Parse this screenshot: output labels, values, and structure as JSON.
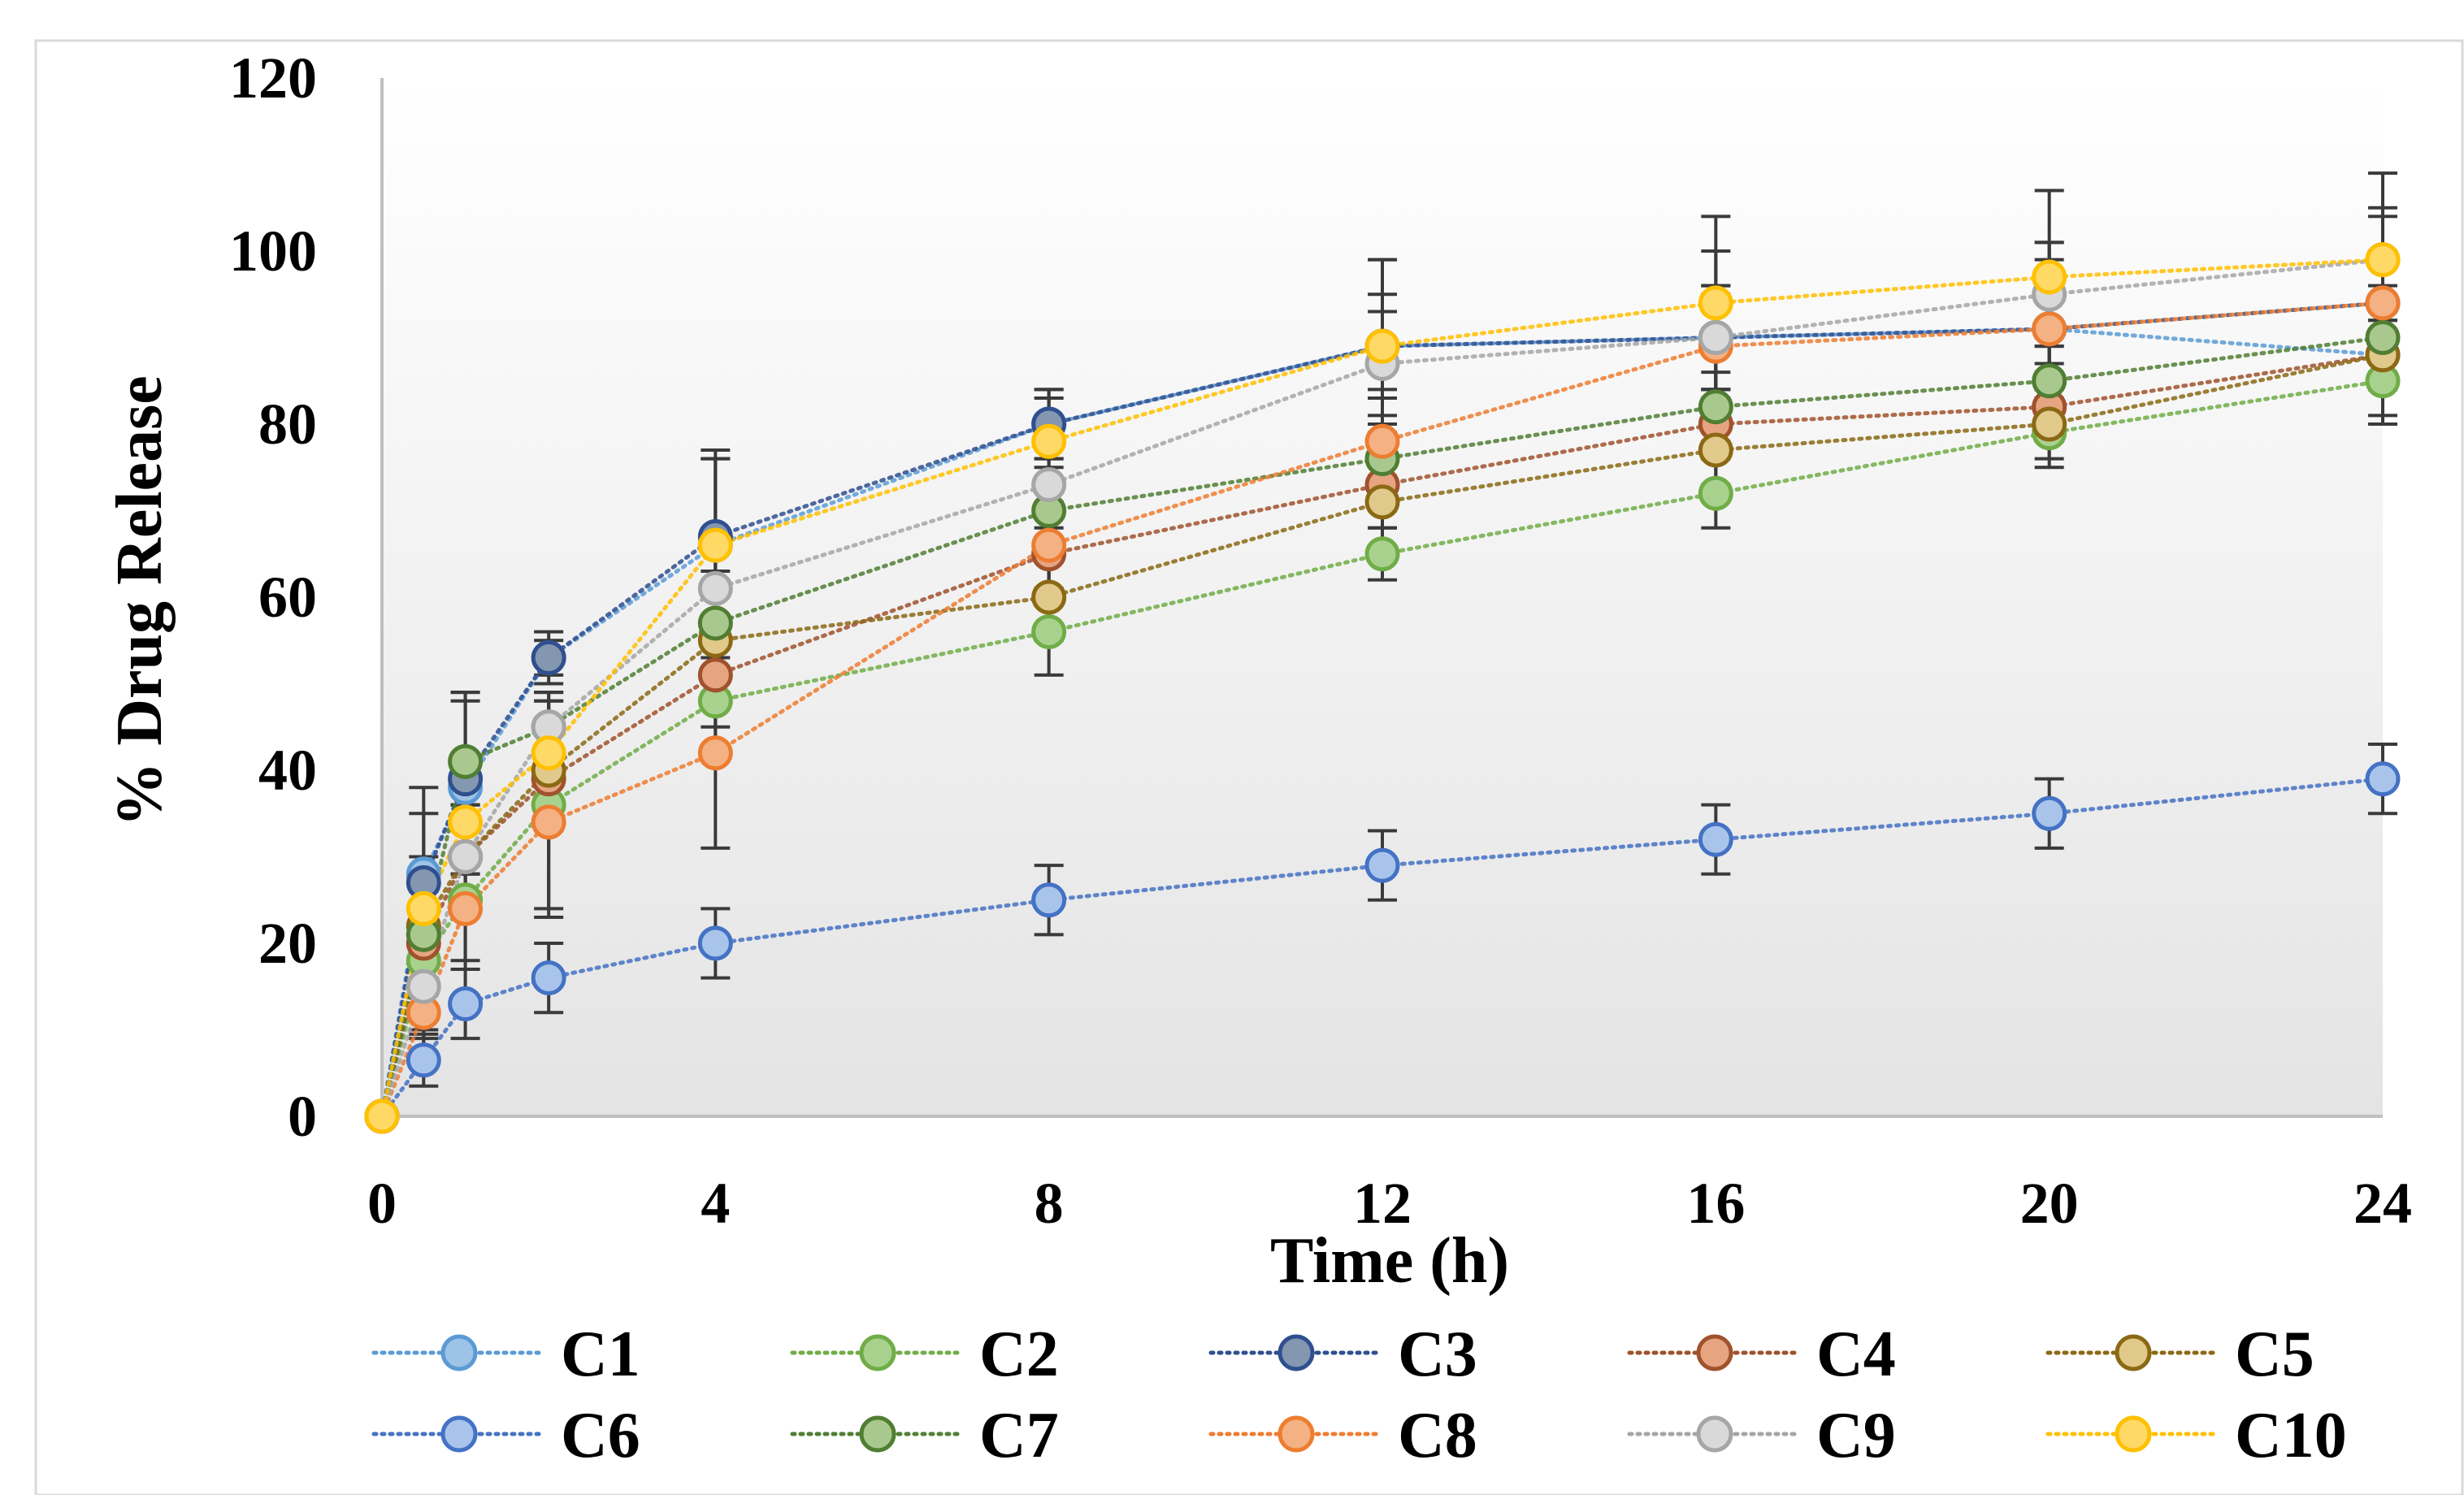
{
  "chart_data": {
    "type": "line",
    "title": "",
    "xlabel": "Time (h)",
    "ylabel": "% Drug Release",
    "x": [
      0,
      0.5,
      1,
      2,
      4,
      8,
      12,
      16,
      20,
      24
    ],
    "x_ticks": [
      0,
      4,
      8,
      12,
      16,
      20,
      24
    ],
    "y_ticks": [
      0,
      20,
      40,
      60,
      80,
      100,
      120
    ],
    "xlim": [
      0,
      24
    ],
    "ylim": [
      0,
      120
    ],
    "grid": false,
    "legend_position": "bottom",
    "series": [
      {
        "name": "C1",
        "color": "#9DC3E6",
        "edge": "#5B9BD5",
        "values": [
          0,
          28,
          38,
          53,
          66,
          80,
          89,
          90,
          91,
          88
        ],
        "errors": [
          0,
          10,
          10,
          3,
          10,
          4,
          6,
          6,
          8,
          8
        ]
      },
      {
        "name": "C2",
        "color": "#A9D18E",
        "edge": "#70AD47",
        "values": [
          0,
          18,
          25,
          36,
          48,
          56,
          65,
          72,
          79,
          85
        ],
        "errors": [
          0,
          8,
          8,
          12,
          6,
          5,
          3,
          4,
          4,
          4
        ]
      },
      {
        "name": "C3",
        "color": "#8497B0",
        "edge": "#2F4F8F",
        "values": [
          0,
          27,
          39,
          53,
          67,
          80,
          89,
          90,
          91,
          94
        ],
        "errors": [
          0,
          8,
          10,
          2,
          10,
          4,
          10,
          10,
          10,
          10
        ]
      },
      {
        "name": "C4",
        "color": "#E6A481",
        "edge": "#A0522D",
        "values": [
          0,
          20,
          30,
          39,
          51,
          65,
          73,
          80,
          82,
          88
        ],
        "errors": [
          0,
          6,
          6,
          6,
          6,
          5,
          3,
          4,
          4,
          4
        ]
      },
      {
        "name": "C5",
        "color": "#E0C98A",
        "edge": "#8B6914",
        "values": [
          0,
          22,
          30,
          40,
          55,
          60,
          71,
          77,
          80,
          88
        ],
        "errors": [
          0,
          6,
          6,
          6,
          6,
          5,
          3,
          4,
          4,
          4
        ]
      },
      {
        "name": "C6",
        "color": "#A9C4EB",
        "edge": "#4472C4",
        "values": [
          0,
          6.5,
          13,
          16,
          20,
          25,
          29,
          32,
          35,
          39
        ],
        "errors": [
          0,
          3,
          4,
          4,
          4,
          4,
          4,
          4,
          4,
          4
        ]
      },
      {
        "name": "C7",
        "color": "#A9C88E",
        "edge": "#507E32",
        "values": [
          0,
          21,
          41,
          45,
          57,
          70,
          76,
          82,
          85,
          90
        ],
        "errors": [
          0,
          6,
          8,
          4,
          6,
          5,
          4,
          4,
          4,
          4
        ]
      },
      {
        "name": "C8",
        "color": "#F4B183",
        "edge": "#ED7D31",
        "values": [
          0,
          12,
          24,
          34,
          42,
          66,
          78,
          89,
          91,
          94
        ],
        "errors": [
          0,
          6,
          6,
          11,
          11,
          5,
          6,
          6,
          6,
          6
        ]
      },
      {
        "name": "C9",
        "color": "#D9D9D9",
        "edge": "#A6A6A6",
        "values": [
          0,
          15,
          30,
          45,
          61,
          73,
          87,
          90,
          95,
          99
        ],
        "errors": [
          0,
          6,
          6,
          4,
          6,
          5,
          6,
          6,
          6,
          6
        ]
      },
      {
        "name": "C10",
        "color": "#FFD966",
        "edge": "#FFC000",
        "values": [
          0,
          24,
          34,
          42,
          66,
          78,
          89,
          94,
          97,
          99
        ],
        "errors": [
          0,
          6,
          6,
          6,
          10,
          5,
          10,
          10,
          10,
          10
        ]
      }
    ]
  }
}
